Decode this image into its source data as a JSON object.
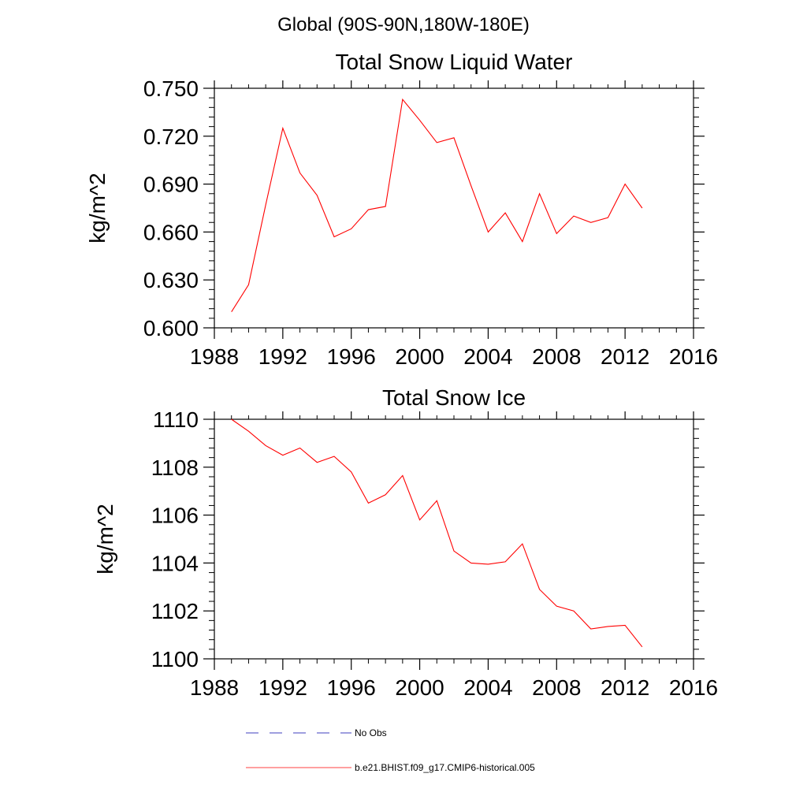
{
  "page_title": "Global (90S-90N,180W-180E)",
  "chart_data": [
    {
      "type": "line",
      "title": "Total Snow Liquid Water",
      "xlabel": "",
      "ylabel": "kg/m^2",
      "xlim": [
        1988,
        2016
      ],
      "ylim": [
        0.6,
        0.75
      ],
      "xticks": [
        1988,
        1992,
        1996,
        2000,
        2004,
        2008,
        2012,
        2016
      ],
      "xtick_labels": [
        "1988",
        "1992",
        "1996",
        "2000",
        "2004",
        "2008",
        "2012",
        "2016"
      ],
      "yticks": [
        0.6,
        0.63,
        0.66,
        0.69,
        0.72,
        0.75
      ],
      "ytick_labels": [
        "0.600",
        "0.630",
        "0.660",
        "0.690",
        "0.720",
        "0.750"
      ],
      "series": [
        {
          "name": "b.e21.BHIST.f09_g17.CMIP6-historical.005",
          "color": "#ff0000",
          "x": [
            1989,
            1990,
            1991,
            1992,
            1993,
            1994,
            1995,
            1996,
            1997,
            1998,
            1999,
            2000,
            2001,
            2002,
            2003,
            2004,
            2005,
            2006,
            2007,
            2008,
            2009,
            2010,
            2011,
            2012,
            2013
          ],
          "values": [
            0.61,
            0.627,
            0.677,
            0.725,
            0.697,
            0.683,
            0.657,
            0.662,
            0.674,
            0.676,
            0.743,
            0.73,
            0.716,
            0.719,
            0.689,
            0.66,
            0.672,
            0.654,
            0.684,
            0.659,
            0.67,
            0.666,
            0.669,
            0.69,
            0.675
          ]
        }
      ]
    },
    {
      "type": "line",
      "title": "Total Snow Ice",
      "xlabel": "",
      "ylabel": "kg/m^2",
      "xlim": [
        1988,
        2016
      ],
      "ylim": [
        1100,
        1110
      ],
      "xticks": [
        1988,
        1992,
        1996,
        2000,
        2004,
        2008,
        2012,
        2016
      ],
      "xtick_labels": [
        "1988",
        "1992",
        "1996",
        "2000",
        "2004",
        "2008",
        "2012",
        "2016"
      ],
      "yticks": [
        1100,
        1102,
        1104,
        1106,
        1108,
        1110
      ],
      "ytick_labels": [
        "1100",
        "1102",
        "1104",
        "1106",
        "1108",
        "1110"
      ],
      "series": [
        {
          "name": "b.e21.BHIST.f09_g17.CMIP6-historical.005",
          "color": "#ff0000",
          "x": [
            1989,
            1990,
            1991,
            1992,
            1993,
            1994,
            1995,
            1996,
            1997,
            1998,
            1999,
            2000,
            2001,
            2002,
            2003,
            2004,
            2005,
            2006,
            2007,
            2008,
            2009,
            2010,
            2011,
            2012,
            2013
          ],
          "values": [
            1110.0,
            1109.5,
            1108.9,
            1108.5,
            1108.8,
            1108.2,
            1108.45,
            1107.8,
            1106.5,
            1106.85,
            1107.65,
            1105.8,
            1106.6,
            1104.5,
            1104.0,
            1103.95,
            1104.05,
            1104.8,
            1102.9,
            1102.2,
            1102.0,
            1101.25,
            1101.35,
            1101.4,
            1100.5
          ]
        }
      ]
    }
  ],
  "legend": [
    {
      "label": "No Obs",
      "color": "#0000aa",
      "style": "dashed"
    },
    {
      "label": "b.e21.BHIST.f09_g17.CMIP6-historical.005",
      "color": "#ff0000",
      "style": "solid"
    }
  ]
}
